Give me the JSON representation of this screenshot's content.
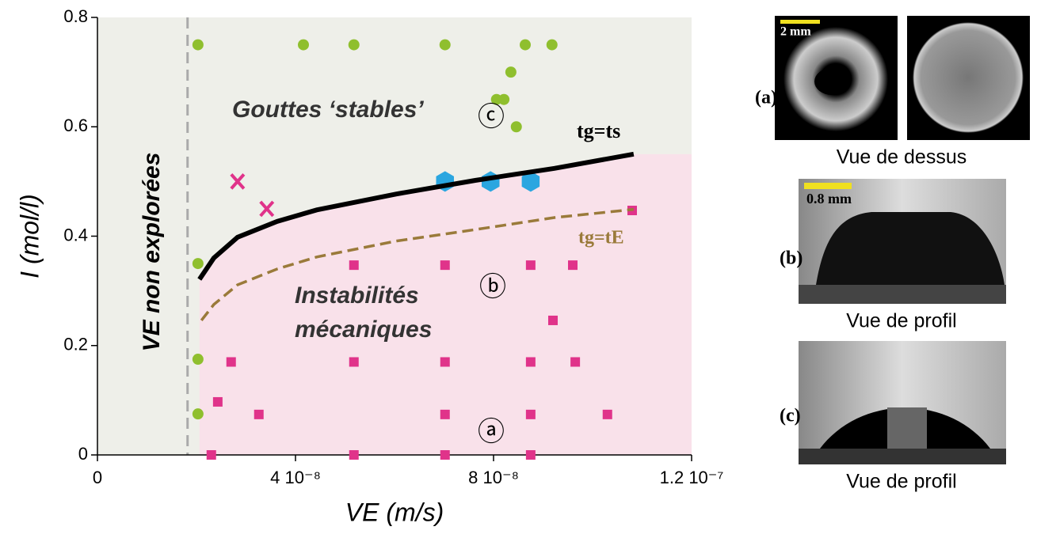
{
  "chart_data": {
    "type": "scatter",
    "xlabel": "VE (m/s)",
    "ylabel": "I (mol/l)",
    "xlim": [
      0,
      1.2e-07
    ],
    "ylim": [
      0,
      0.8
    ],
    "xticks": [
      0,
      {
        "value": 4e-08,
        "label": "4 10⁻⁸"
      },
      {
        "value": 8e-08,
        "label": "8 10⁻⁸"
      },
      {
        "value": 1.2e-07,
        "label": "1.2 10⁻⁷"
      }
    ],
    "yticks": [
      0,
      0.2,
      0.4,
      0.6,
      0.8
    ],
    "unexplored_limit": 1.82e-08,
    "unexplored_label": "VE non explorées",
    "annotations": {
      "stable": "Gouttes ‘stables’",
      "stable_mark": "ⓒ",
      "instab1": "Instabilités",
      "instab2": "mécaniques",
      "instab_mark": "ⓑ",
      "low_mark": "ⓐ",
      "curve_s": "tg=ts",
      "curve_e": "tg=tE"
    },
    "series": [
      {
        "marker": "circle",
        "color": "#8fbf2e",
        "x": [
          2.03e-08,
          4.16e-08,
          5.18e-08,
          7.02e-08,
          8.64e-08,
          9.18e-08,
          8.35e-08,
          8.06e-08,
          8.21e-08,
          8.46e-08,
          2.03e-08,
          2.03e-08,
          2.03e-08
        ],
        "values": [
          0.75,
          0.75,
          0.75,
          0.75,
          0.75,
          0.75,
          0.7,
          0.65,
          0.65,
          0.6,
          0.35,
          0.175,
          0.075
        ]
      },
      {
        "marker": "square",
        "color": "#e0338a",
        "x": [
          2.3e-08,
          5.18e-08,
          7.02e-08,
          8.75e-08,
          2.43e-08,
          3.26e-08,
          7.02e-08,
          8.75e-08,
          1.03e-07,
          2.7e-08,
          5.18e-08,
          7.02e-08,
          8.75e-08,
          9.65e-08,
          9.2e-08,
          5.18e-08,
          7.02e-08,
          8.75e-08,
          9.6e-08,
          1.08e-07
        ],
        "values": [
          0,
          0,
          0,
          0,
          0.097,
          0.074,
          0.074,
          0.074,
          0.074,
          0.17,
          0.17,
          0.17,
          0.17,
          0.17,
          0.246,
          0.347,
          0.347,
          0.347,
          0.347,
          0.447
        ]
      },
      {
        "marker": "hexagon",
        "color": "#2aa6e0",
        "x": [
          7.02e-08,
          7.94e-08,
          8.75e-08
        ],
        "values": [
          0.5,
          0.5,
          0.5
        ]
      },
      {
        "marker": "x",
        "color": "#e0338a",
        "x": [
          2.83e-08,
          3.42e-08
        ],
        "values": [
          0.5,
          0.45
        ]
      },
      {
        "marker": "line",
        "color": "#000000",
        "dashed": false,
        "fill_below": "#f9e1ea",
        "x": [
          2.06e-08,
          2.35e-08,
          2.83e-08,
          3.63e-08,
          4.43e-08,
          6.03e-08,
          7.63e-08,
          9.23e-08,
          1.083e-07
        ],
        "values": [
          0.321,
          0.36,
          0.398,
          0.427,
          0.448,
          0.477,
          0.502,
          0.524,
          0.55
        ]
      },
      {
        "marker": "line",
        "color": "#9a7a3a",
        "dashed": true,
        "x": [
          2.1e-08,
          2.35e-08,
          2.83e-08,
          3.63e-08,
          4.43e-08,
          6.03e-08,
          7.63e-08,
          9.23e-08,
          1.083e-07
        ],
        "values": [
          0.246,
          0.275,
          0.311,
          0.34,
          0.362,
          0.391,
          0.412,
          0.434,
          0.449
        ]
      }
    ]
  },
  "panels": {
    "a": "(a)",
    "a_scale": "2 mm",
    "a_caption": "Vue de dessus",
    "b": "(b)",
    "b_scale": "0.8 mm",
    "b_caption": "Vue de profil",
    "c": "(c)",
    "c_caption": "Vue de profil"
  }
}
